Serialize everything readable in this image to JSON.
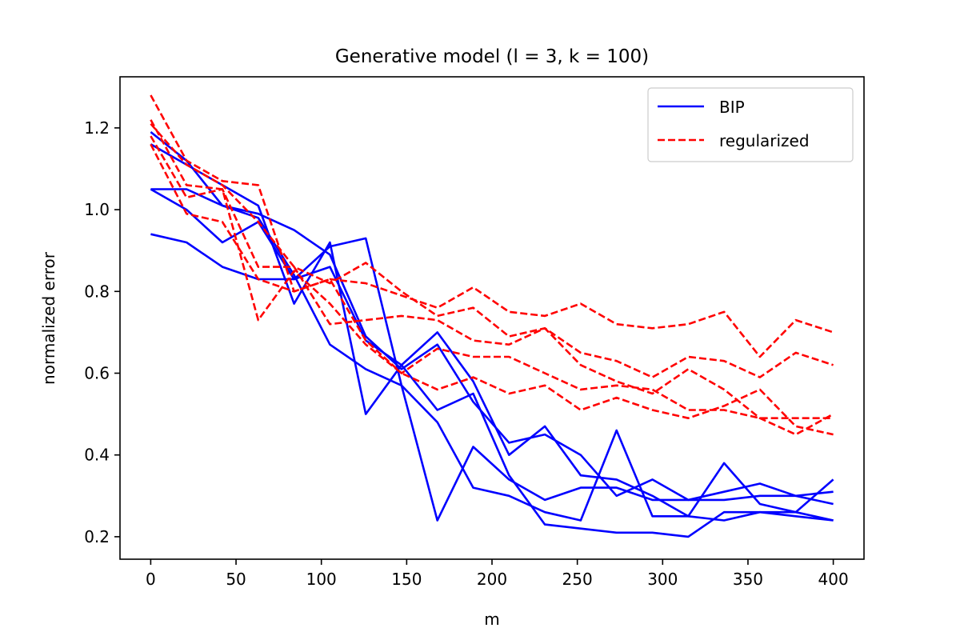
{
  "chart_data": {
    "type": "line",
    "title": "Generative model (l = 3, k = 100)",
    "xlabel": "m",
    "ylabel": "normalized error",
    "xlim": [
      -18,
      418
    ],
    "ylim": [
      0.145,
      1.325
    ],
    "xticks": [
      0,
      50,
      100,
      150,
      200,
      250,
      300,
      350,
      400
    ],
    "yticks": [
      0.2,
      0.4,
      0.6,
      0.8,
      1.0,
      1.2
    ],
    "ytick_labels": [
      "0.2",
      "0.4",
      "0.6",
      "0.8",
      "1.0",
      "1.2"
    ],
    "grid": false,
    "legend_position": "top-right",
    "legend": [
      {
        "label": "BIP",
        "color": "#0000ff",
        "style": "solid"
      },
      {
        "label": "regularized",
        "color": "#ff0000",
        "style": "dashed"
      }
    ],
    "x": [
      0,
      21,
      42,
      63,
      84,
      105,
      126,
      147,
      168,
      189,
      210,
      231,
      252,
      273,
      294,
      315,
      336,
      357,
      378,
      400
    ],
    "series": [
      {
        "group": "BIP",
        "values": [
          1.19,
          1.12,
          1.01,
          0.99,
          0.95,
          0.89,
          0.69,
          0.61,
          0.67,
          0.53,
          0.43,
          0.45,
          0.4,
          0.3,
          0.34,
          0.29,
          0.29,
          0.3,
          0.3,
          0.31
        ]
      },
      {
        "group": "BIP",
        "values": [
          1.16,
          1.11,
          1.06,
          1.01,
          0.77,
          0.92,
          0.5,
          0.62,
          0.7,
          0.58,
          0.4,
          0.47,
          0.35,
          0.34,
          0.3,
          0.25,
          0.24,
          0.26,
          0.26,
          0.24
        ]
      },
      {
        "group": "BIP",
        "values": [
          1.05,
          1.05,
          1.01,
          0.98,
          0.84,
          0.67,
          0.61,
          0.57,
          0.24,
          0.42,
          0.34,
          0.29,
          0.32,
          0.32,
          0.29,
          0.29,
          0.31,
          0.33,
          0.3,
          0.28
        ]
      },
      {
        "group": "BIP",
        "values": [
          1.05,
          1.0,
          0.92,
          0.97,
          0.83,
          0.91,
          0.93,
          0.57,
          0.48,
          0.32,
          0.3,
          0.26,
          0.24,
          0.46,
          0.25,
          0.25,
          0.38,
          0.28,
          0.26,
          0.34
        ]
      },
      {
        "group": "BIP",
        "values": [
          0.94,
          0.92,
          0.86,
          0.83,
          0.83,
          0.86,
          0.68,
          0.62,
          0.51,
          0.55,
          0.35,
          0.23,
          0.22,
          0.21,
          0.21,
          0.2,
          0.26,
          0.26,
          0.25,
          0.24
        ]
      },
      {
        "group": "regularized",
        "values": [
          1.28,
          1.12,
          1.07,
          1.06,
          0.8,
          0.83,
          0.82,
          0.79,
          0.76,
          0.81,
          0.75,
          0.74,
          0.77,
          0.72,
          0.71,
          0.72,
          0.75,
          0.64,
          0.73,
          0.7
        ]
      },
      {
        "group": "regularized",
        "values": [
          1.21,
          1.11,
          1.06,
          0.97,
          0.86,
          0.82,
          0.87,
          0.8,
          0.74,
          0.76,
          0.69,
          0.71,
          0.65,
          0.63,
          0.59,
          0.64,
          0.63,
          0.59,
          0.65,
          0.62
        ]
      },
      {
        "group": "regularized",
        "values": [
          1.18,
          1.03,
          1.05,
          0.86,
          0.86,
          0.72,
          0.73,
          0.74,
          0.73,
          0.68,
          0.67,
          0.71,
          0.62,
          0.58,
          0.55,
          0.61,
          0.56,
          0.49,
          0.45,
          0.5
        ]
      },
      {
        "group": "regularized",
        "values": [
          1.16,
          0.99,
          0.97,
          0.83,
          0.8,
          0.83,
          0.68,
          0.6,
          0.66,
          0.64,
          0.64,
          0.6,
          0.56,
          0.57,
          0.56,
          0.51,
          0.51,
          0.49,
          0.49,
          0.49
        ]
      },
      {
        "group": "regularized",
        "values": [
          1.22,
          1.06,
          1.05,
          0.73,
          0.85,
          0.77,
          0.67,
          0.6,
          0.56,
          0.59,
          0.55,
          0.57,
          0.51,
          0.54,
          0.51,
          0.49,
          0.52,
          0.56,
          0.47,
          0.45
        ]
      }
    ]
  }
}
